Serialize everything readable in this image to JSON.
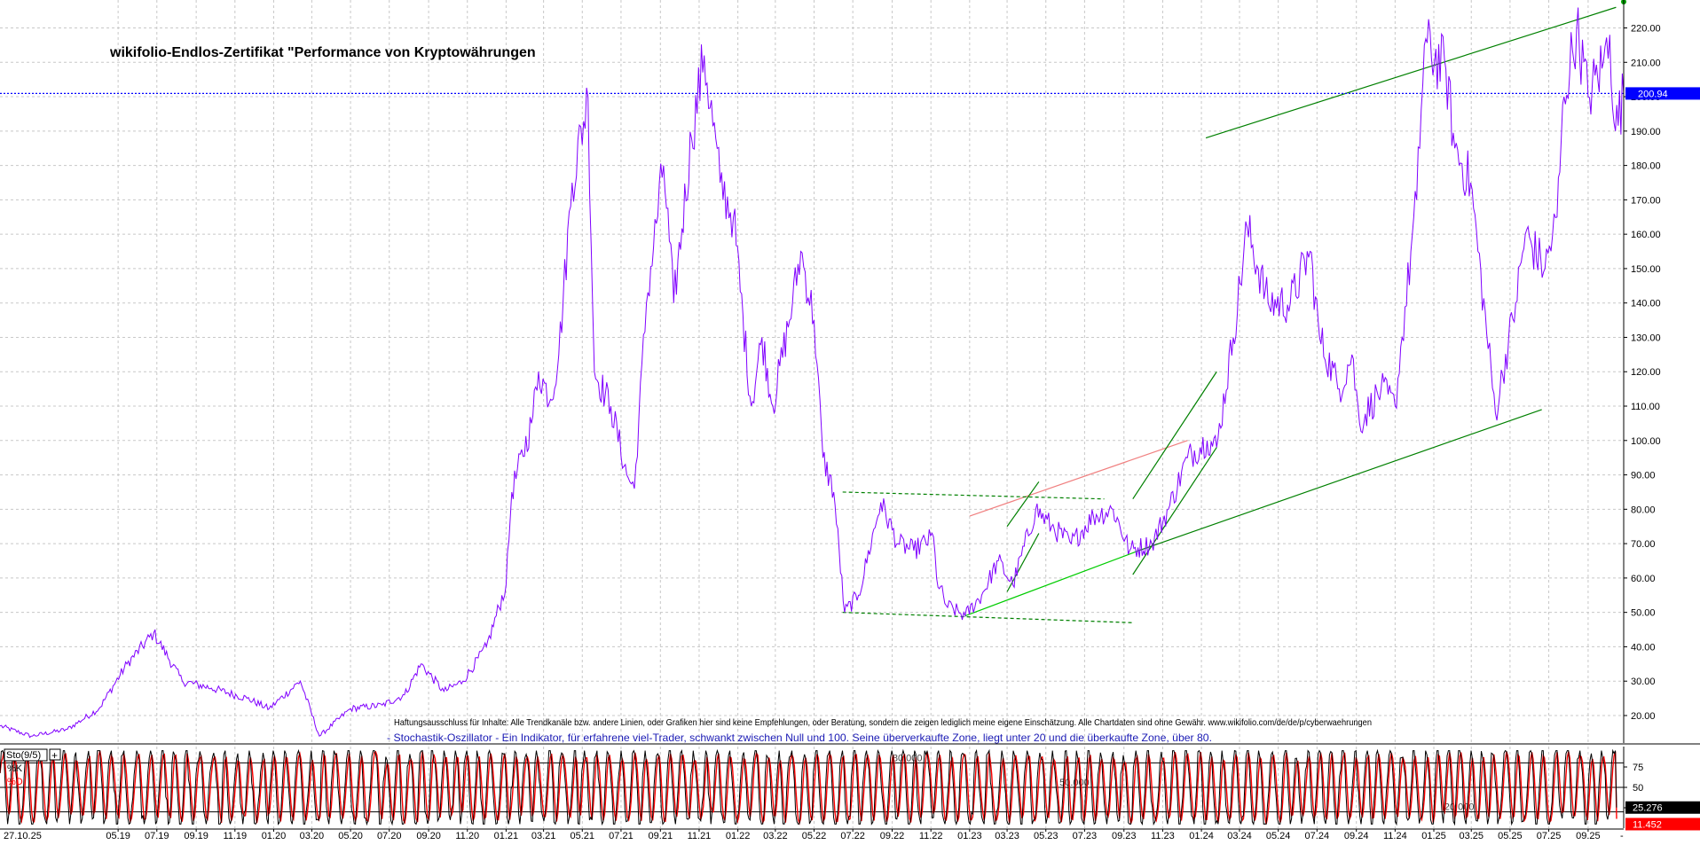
{
  "chart_data": [
    {
      "type": "line",
      "title": "wikifolio-Endlos-Zertifikat \"Performance von Kryptowährungen",
      "ylim": [
        12,
        224
      ],
      "yticks": [
        20,
        30,
        40,
        50,
        60,
        70,
        80,
        90,
        100,
        110,
        120,
        130,
        140,
        150,
        160,
        170,
        180,
        190,
        200,
        210,
        220
      ],
      "ytick_labels": [
        "20.00",
        "30.00",
        "40.00",
        "50.00",
        "60.00",
        "70.00",
        "80.00",
        "90.00",
        "100.00",
        "110.00",
        "120.00",
        "130.00",
        "140.00",
        "150.00",
        "160.00",
        "170.00",
        "180.00",
        "190.00",
        "200.00",
        "210.00",
        "220.00"
      ],
      "last_value": 200.94,
      "last_value_label": "200.94",
      "grid": true,
      "series": [
        {
          "color": "#8000ff",
          "points": [
            [
              "2018-10-27",
              17
            ],
            [
              "2018-12-15",
              14
            ],
            [
              "2019-02-10",
              16
            ],
            [
              "2019-04-01",
              22
            ],
            [
              "2019-05-15",
              35
            ],
            [
              "2019-06-26",
              44
            ],
            [
              "2019-08-10",
              30
            ],
            [
              "2019-09-25",
              28
            ],
            [
              "2019-11-20",
              25
            ],
            [
              "2019-12-25",
              22
            ],
            [
              "2020-02-12",
              30
            ],
            [
              "2020-03-13",
              14
            ],
            [
              "2020-05-01",
              22
            ],
            [
              "2020-06-20",
              23
            ],
            [
              "2020-07-25",
              26
            ],
            [
              "2020-08-20",
              35
            ],
            [
              "2020-09-25",
              27
            ],
            [
              "2020-10-25",
              30
            ],
            [
              "2020-12-01",
              40
            ],
            [
              "2021-01-01",
              58
            ],
            [
              "2021-01-10",
              85
            ],
            [
              "2021-02-10",
              105
            ],
            [
              "2021-02-21",
              120
            ],
            [
              "2021-03-12",
              112
            ],
            [
              "2021-03-25",
              125
            ],
            [
              "2021-04-15",
              175
            ],
            [
              "2021-05-10",
              200
            ],
            [
              "2021-05-20",
              120
            ],
            [
              "2021-06-15",
              110
            ],
            [
              "2021-07-10",
              90
            ],
            [
              "2021-07-22",
              86
            ],
            [
              "2021-08-10",
              140
            ],
            [
              "2021-09-06",
              180
            ],
            [
              "2021-09-22",
              140
            ],
            [
              "2021-10-20",
              188
            ],
            [
              "2021-11-09",
              212
            ],
            [
              "2021-12-04",
              175
            ],
            [
              "2021-12-25",
              165
            ],
            [
              "2022-01-22",
              110
            ],
            [
              "2022-02-08",
              130
            ],
            [
              "2022-02-25",
              110
            ],
            [
              "2022-03-28",
              140
            ],
            [
              "2022-04-10",
              155
            ],
            [
              "2022-05-01",
              135
            ],
            [
              "2022-05-15",
              95
            ],
            [
              "2022-06-01",
              85
            ],
            [
              "2022-06-18",
              50
            ],
            [
              "2022-07-10",
              55
            ],
            [
              "2022-08-14",
              82
            ],
            [
              "2022-09-10",
              70
            ],
            [
              "2022-10-05",
              68
            ],
            [
              "2022-11-05",
              72
            ],
            [
              "2022-11-10",
              60
            ],
            [
              "2022-11-25",
              52
            ],
            [
              "2022-12-25",
              49
            ],
            [
              "2023-01-20",
              55
            ],
            [
              "2023-02-15",
              65
            ],
            [
              "2023-03-10",
              58
            ],
            [
              "2023-04-15",
              80
            ],
            [
              "2023-05-10",
              75
            ],
            [
              "2023-06-10",
              70
            ],
            [
              "2023-07-15",
              78
            ],
            [
              "2023-08-15",
              80
            ],
            [
              "2023-09-10",
              68
            ],
            [
              "2023-10-15",
              70
            ],
            [
              "2023-11-10",
              80
            ],
            [
              "2023-12-10",
              95
            ],
            [
              "2024-01-10",
              100
            ],
            [
              "2024-01-25",
              98
            ],
            [
              "2024-02-20",
              130
            ],
            [
              "2024-03-13",
              162
            ],
            [
              "2024-04-15",
              140
            ],
            [
              "2024-05-20",
              140
            ],
            [
              "2024-06-20",
              155
            ],
            [
              "2024-07-05",
              130
            ],
            [
              "2024-08-05",
              115
            ],
            [
              "2024-08-25",
              125
            ],
            [
              "2024-09-06",
              105
            ],
            [
              "2024-10-10",
              115
            ],
            [
              "2024-11-01",
              110
            ],
            [
              "2024-11-12",
              130
            ],
            [
              "2024-12-05",
              170
            ],
            [
              "2024-12-17",
              215
            ],
            [
              "2025-01-20",
              208
            ],
            [
              "2025-02-03",
              185
            ],
            [
              "2025-02-28",
              175
            ],
            [
              "2025-04-08",
              108
            ],
            [
              "2025-05-10",
              140
            ],
            [
              "2025-05-25",
              160
            ],
            [
              "2025-06-25",
              150
            ],
            [
              "2025-07-14",
              165
            ],
            [
              "2025-07-25",
              200
            ],
            [
              "2025-08-14",
              220
            ],
            [
              "2025-09-01",
              200
            ],
            [
              "2025-09-25",
              210
            ],
            [
              "2025-10-05",
              218
            ],
            [
              "2025-10-14",
              190
            ],
            [
              "2025-10-27",
              200.94
            ]
          ]
        }
      ],
      "reference_line": {
        "value": 200.94,
        "color": "#0000ff",
        "style": "dotted"
      },
      "trendlines": [
        {
          "color": "#008000",
          "style": "solid",
          "from": [
            "2024-01-08",
            188
          ],
          "to": [
            "2025-10-15",
            226
          ]
        },
        {
          "color": "#008000",
          "style": "solid",
          "from": [
            "2023-09-25",
            68
          ],
          "to": [
            "2025-06-20",
            109
          ]
        },
        {
          "color": "#00cc00",
          "style": "solid",
          "from": [
            "2022-12-25",
            49
          ],
          "to": [
            "2023-09-25",
            68
          ]
        },
        {
          "color": "#f08080",
          "style": "solid",
          "from": [
            "2023-01-01",
            78
          ],
          "to": [
            "2023-12-10",
            100
          ]
        },
        {
          "color": "#008000",
          "style": "dashed",
          "from": [
            "2022-06-15",
            85
          ],
          "to": [
            "2023-08-01",
            83
          ]
        },
        {
          "color": "#008000",
          "style": "dashed",
          "from": [
            "2022-06-15",
            50
          ],
          "to": [
            "2023-09-15",
            47
          ]
        },
        {
          "color": "#008000",
          "style": "solid",
          "from": [
            "2023-03-01",
            56
          ],
          "to": [
            "2023-04-20",
            73
          ]
        },
        {
          "color": "#008000",
          "style": "solid",
          "from": [
            "2023-03-01",
            75
          ],
          "to": [
            "2023-04-20",
            88
          ]
        },
        {
          "color": "#008000",
          "style": "solid",
          "from": [
            "2023-09-15",
            61
          ],
          "to": [
            "2024-01-25",
            98
          ]
        },
        {
          "color": "#008000",
          "style": "solid",
          "from": [
            "2023-09-15",
            83
          ],
          "to": [
            "2024-01-25",
            120
          ]
        }
      ],
      "disclaimer": "Haftungsausschluss für Inhalte: Alle Trendkanäle bzw. andere Linien, oder Grafiken hier sind keine Empfehlungen, oder Beratung, sondern die zeigen lediglich meine eigene Einschätzung. Alle Chartdaten sind ohne Gewähr.  www.wikifolio.com/de/de/p/cyberwaehrungen",
      "indicator_note": "- Stochastik-Oszillator - Ein Indikator, für erfahrene viel-Trader, schwankt zwischen Null und 100. Seine überverkaufte Zone, liegt unter 20 und die überkaufte Zone, über 80."
    },
    {
      "type": "line",
      "title": "Sto(9/5)",
      "ylim": [
        0,
        100
      ],
      "yticks": [
        25,
        50,
        75
      ],
      "ytick_labels": [
        "25",
        "50",
        "75"
      ],
      "levels": [
        {
          "value": 80,
          "label": "80.000"
        },
        {
          "value": 50,
          "label": "50.000"
        },
        {
          "value": 20,
          "label": "20.000"
        }
      ],
      "series": [
        {
          "name": "%K",
          "color": "#000000",
          "last_value": 25.276,
          "last_label": "25.276"
        },
        {
          "name": "%D",
          "color": "#ff0000",
          "last_value": 11.452,
          "last_label": "11.452"
        }
      ],
      "cycle_days": 20,
      "amplitude": [
        5,
        95
      ]
    }
  ],
  "x_axis": {
    "start": "2018-10-27",
    "end": "2025-10-27",
    "start_label": "27.10.25",
    "end_label": "-",
    "ticks": [
      {
        "label": "05.19",
        "date": "2019-05-01"
      },
      {
        "label": "07.19",
        "date": "2019-07-01"
      },
      {
        "label": "09.19",
        "date": "2019-09-01"
      },
      {
        "label": "11.19",
        "date": "2019-11-01"
      },
      {
        "label": "01.20",
        "date": "2020-01-01"
      },
      {
        "label": "03.20",
        "date": "2020-03-01"
      },
      {
        "label": "05.20",
        "date": "2020-05-01"
      },
      {
        "label": "07.20",
        "date": "2020-07-01"
      },
      {
        "label": "09.20",
        "date": "2020-09-01"
      },
      {
        "label": "11.20",
        "date": "2020-11-01"
      },
      {
        "label": "01.21",
        "date": "2021-01-01"
      },
      {
        "label": "03.21",
        "date": "2021-03-01"
      },
      {
        "label": "05.21",
        "date": "2021-05-01"
      },
      {
        "label": "07.21",
        "date": "2021-07-01"
      },
      {
        "label": "09.21",
        "date": "2021-09-01"
      },
      {
        "label": "11.21",
        "date": "2021-11-01"
      },
      {
        "label": "01.22",
        "date": "2022-01-01"
      },
      {
        "label": "03.22",
        "date": "2022-03-01"
      },
      {
        "label": "05.22",
        "date": "2022-05-01"
      },
      {
        "label": "07.22",
        "date": "2022-07-01"
      },
      {
        "label": "09.22",
        "date": "2022-09-01"
      },
      {
        "label": "11.22",
        "date": "2022-11-01"
      },
      {
        "label": "01.23",
        "date": "2023-01-01"
      },
      {
        "label": "03.23",
        "date": "2023-03-01"
      },
      {
        "label": "05.23",
        "date": "2023-05-01"
      },
      {
        "label": "07.23",
        "date": "2023-07-01"
      },
      {
        "label": "09.23",
        "date": "2023-09-01"
      },
      {
        "label": "11.23",
        "date": "2023-11-01"
      },
      {
        "label": "01.24",
        "date": "2024-01-01"
      },
      {
        "label": "03.24",
        "date": "2024-03-01"
      },
      {
        "label": "05.24",
        "date": "2024-05-01"
      },
      {
        "label": "07.24",
        "date": "2024-07-01"
      },
      {
        "label": "09.24",
        "date": "2024-09-01"
      },
      {
        "label": "11.24",
        "date": "2024-11-01"
      },
      {
        "label": "01.25",
        "date": "2025-01-01"
      },
      {
        "label": "03.25",
        "date": "2025-03-01"
      },
      {
        "label": "05.25",
        "date": "2025-05-01"
      },
      {
        "label": "07.25",
        "date": "2025-07-01"
      },
      {
        "label": "09.25",
        "date": "2025-09-01"
      }
    ]
  }
}
